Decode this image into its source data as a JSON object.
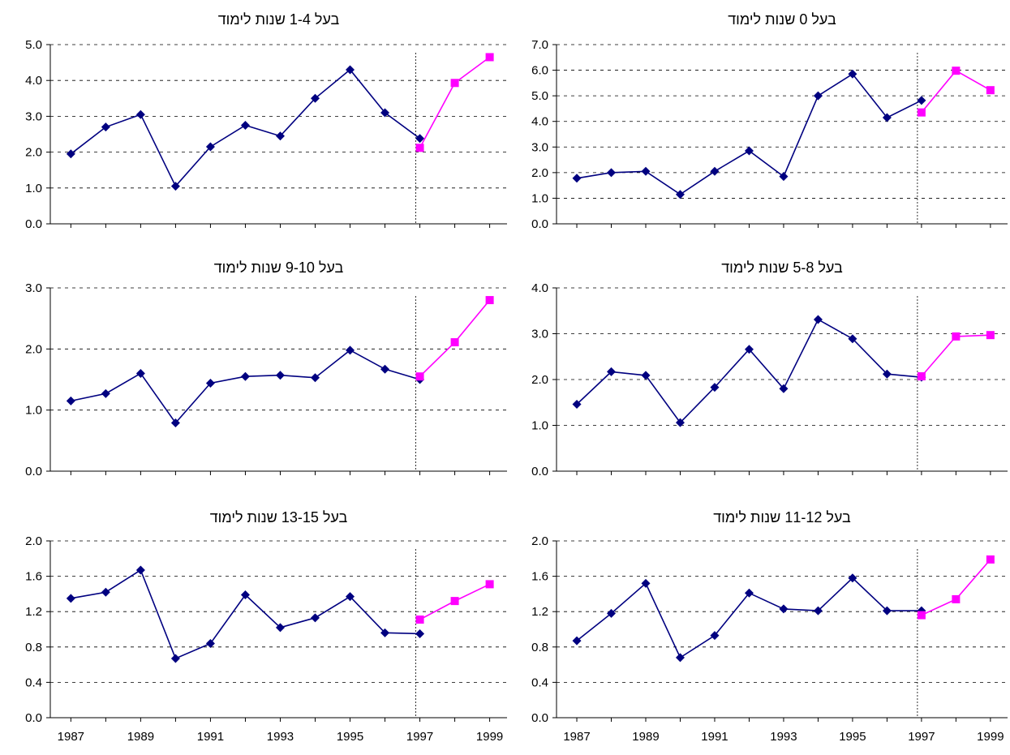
{
  "chart_data": [
    {
      "type": "line",
      "title": "בעל 1-4  שנות לימוד",
      "ylim": [
        0,
        5
      ],
      "yticks": [
        "0.0",
        "1.0",
        "2.0",
        "3.0",
        "4.0",
        "5.0"
      ],
      "series": [
        {
          "color": "#000080",
          "marker": "diamond",
          "x": [
            1987,
            1988,
            1989,
            1990,
            1991,
            1992,
            1993,
            1994,
            1995,
            1996,
            1997
          ],
          "values": [
            1.95,
            2.7,
            3.05,
            1.05,
            2.15,
            2.75,
            2.45,
            3.5,
            4.3,
            3.1,
            2.38
          ]
        },
        {
          "color": "#FF00FF",
          "marker": "square",
          "x": [
            1997,
            1998,
            1999
          ],
          "values": [
            2.12,
            3.93,
            4.65
          ]
        }
      ],
      "divider_x": 1997,
      "grid": true
    },
    {
      "type": "line",
      "title": "בעל 0  שנות לימוד",
      "ylim": [
        0,
        7
      ],
      "yticks": [
        "0.0",
        "1.0",
        "2.0",
        "3.0",
        "4.0",
        "5.0",
        "6.0",
        "7.0"
      ],
      "series": [
        {
          "color": "#000080",
          "marker": "diamond",
          "x": [
            1987,
            1988,
            1989,
            1990,
            1991,
            1992,
            1993,
            1994,
            1995,
            1996,
            1997
          ],
          "values": [
            1.78,
            2.0,
            2.05,
            1.15,
            2.05,
            2.85,
            1.85,
            5.0,
            5.85,
            4.15,
            4.82
          ]
        },
        {
          "color": "#FF00FF",
          "marker": "square",
          "x": [
            1997,
            1998,
            1999
          ],
          "values": [
            4.35,
            5.98,
            5.22
          ]
        }
      ],
      "divider_x": 1997,
      "grid": true
    },
    {
      "type": "line",
      "title": "בעל 9-10  שנות לימוד",
      "ylim": [
        0,
        3
      ],
      "yticks": [
        "0.0",
        "1.0",
        "2.0",
        "3.0"
      ],
      "series": [
        {
          "color": "#000080",
          "marker": "diamond",
          "x": [
            1987,
            1988,
            1989,
            1990,
            1991,
            1992,
            1993,
            1994,
            1995,
            1996,
            1997
          ],
          "values": [
            1.15,
            1.27,
            1.6,
            0.79,
            1.44,
            1.55,
            1.57,
            1.53,
            1.98,
            1.67,
            1.5
          ]
        },
        {
          "color": "#FF00FF",
          "marker": "square",
          "x": [
            1997,
            1998,
            1999
          ],
          "values": [
            1.55,
            2.11,
            2.8
          ]
        }
      ],
      "divider_x": 1997,
      "grid": true
    },
    {
      "type": "line",
      "title": "בעל 5-8  שנות לימוד",
      "ylim": [
        0,
        4
      ],
      "yticks": [
        "0.0",
        "1.0",
        "2.0",
        "3.0",
        "4.0"
      ],
      "series": [
        {
          "color": "#000080",
          "marker": "diamond",
          "x": [
            1987,
            1988,
            1989,
            1990,
            1991,
            1992,
            1993,
            1994,
            1995,
            1996,
            1997
          ],
          "values": [
            1.46,
            2.17,
            2.09,
            1.06,
            1.83,
            2.66,
            1.8,
            3.31,
            2.89,
            2.12,
            2.05
          ]
        },
        {
          "color": "#FF00FF",
          "marker": "square",
          "x": [
            1997,
            1998,
            1999
          ],
          "values": [
            2.07,
            2.94,
            2.97
          ]
        }
      ],
      "divider_x": 1997,
      "grid": true
    },
    {
      "type": "line",
      "title": "בעל 13-15  שנות לימוד",
      "ylim": [
        0,
        2
      ],
      "yticks": [
        "0.0",
        "0.4",
        "0.8",
        "1.2",
        "1.6",
        "2.0"
      ],
      "xticks": [
        "1987",
        "1989",
        "1991",
        "1993",
        "1995",
        "1997",
        "1999"
      ],
      "series": [
        {
          "color": "#000080",
          "marker": "diamond",
          "x": [
            1987,
            1988,
            1989,
            1990,
            1991,
            1992,
            1993,
            1994,
            1995,
            1996,
            1997
          ],
          "values": [
            1.35,
            1.42,
            1.67,
            0.67,
            0.84,
            1.39,
            1.02,
            1.13,
            1.37,
            0.96,
            0.95
          ]
        },
        {
          "color": "#FF00FF",
          "marker": "square",
          "x": [
            1997,
            1998,
            1999
          ],
          "values": [
            1.11,
            1.32,
            1.51
          ]
        }
      ],
      "divider_x": 1997,
      "grid": true
    },
    {
      "type": "line",
      "title": "בעל 11-12  שנות לימוד",
      "ylim": [
        0,
        2
      ],
      "yticks": [
        "0.0",
        "0.4",
        "0.8",
        "1.2",
        "1.6",
        "2.0"
      ],
      "xticks": [
        "1987",
        "1989",
        "1991",
        "1993",
        "1995",
        "1997",
        "1999"
      ],
      "series": [
        {
          "color": "#000080",
          "marker": "diamond",
          "x": [
            1987,
            1988,
            1989,
            1990,
            1991,
            1992,
            1993,
            1994,
            1995,
            1996,
            1997
          ],
          "values": [
            0.87,
            1.18,
            1.52,
            0.68,
            0.93,
            1.41,
            1.23,
            1.21,
            1.58,
            1.21,
            1.21
          ]
        },
        {
          "color": "#FF00FF",
          "marker": "square",
          "x": [
            1997,
            1998,
            1999
          ],
          "values": [
            1.16,
            1.34,
            1.79
          ]
        }
      ],
      "divider_x": 1997,
      "grid": true
    }
  ]
}
